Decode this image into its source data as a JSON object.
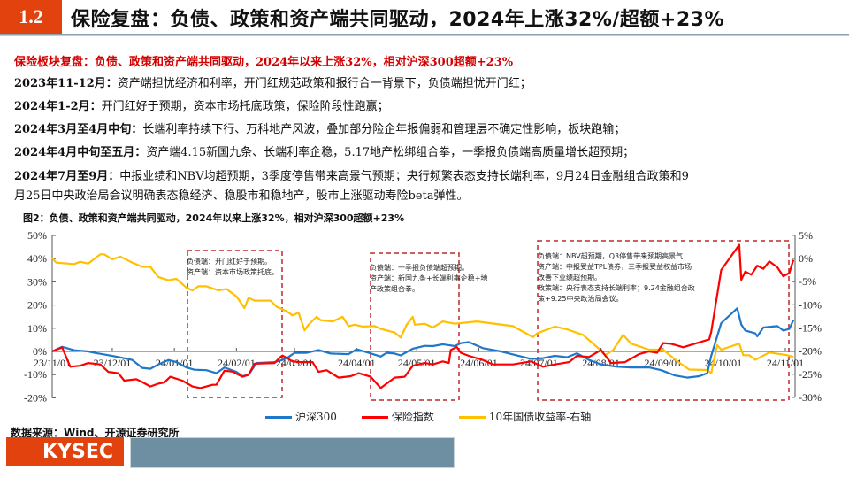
{
  "header": {
    "section_number": "1.2",
    "title": "保险复盘：负债、政策和资产端共同驱动，2024年上涨32%/超额+23%"
  },
  "subheading": "保险板块复盘：负债、政策和资产端共同驱动，2024年以来上涨32%，相对沪深300超额+23%",
  "paragraphs": [
    {
      "label": "2023年11-12月：",
      "text": "资产端担忧经济和利率，开门红规范政策和报行合一背景下，负债端担忧开门红；"
    },
    {
      "label": "2024年1-2月：",
      "text": "开门红好于预期，资本市场托底政策，保险阶段性跑赢；"
    },
    {
      "label": "2024年3月至4月中旬：",
      "text": "长端利率持续下行、万科地产风波，叠加部分险企年报偏弱和管理层不确定性影响，板块跑输；"
    },
    {
      "label": "2024年4月中旬至五月：",
      "text": "资产端4.15新国九条、长端利率企稳，5.17地产松绑组合拳，一季报负债端高质量增长超预期；"
    },
    {
      "label": "2024年7月至9月：",
      "text": "中报业绩和NBV均超预期，3季度停售带来高景气预期；央行频繁表态支持长端利率，9月24日金融组合政策和9",
      "text2": "月25日中央政治局会议明确表态稳经济、稳股市和稳地产，股市上涨驱动寿险beta弹性。"
    }
  ],
  "figure_title": "图2：负债、政策和资产端共同驱动，2024年以来上涨32%，相对沪深300超额+23%",
  "annotations": [
    {
      "lines": [
        "负债端：开门红好于预期。",
        "资产端：资本市场政策托底。"
      ]
    },
    {
      "lines": [
        "负债端：一季报负债端超预期。",
        "资产端：新国九条+长端利率企稳+地",
        "产政策组合拳。"
      ]
    },
    {
      "lines": [
        "负债端：NBV超预期，Q3停售带来预期高景气",
        "资产端：中报受益TPL债券，三季报受益权益市场",
        "改善下业绩超预期。",
        "政策端：央行表态支持长端利率；9.24金融组合政",
        "策+9.25中央政治局会议。"
      ]
    }
  ],
  "source": "数据来源：Wind、开源证券研究所",
  "logo_text": "KYSEC",
  "colors": {
    "accent": "#e2430e",
    "hs300": "#1f77c9",
    "insurance": "#ff0000",
    "bond": "#ffc000",
    "annotation_box": "#c0282d"
  },
  "chart_data": {
    "type": "line",
    "x_unit": "days since 23/11/01",
    "x_ticks": [
      {
        "day": 0,
        "label": "23/11/01"
      },
      {
        "day": 30,
        "label": "23/12/01"
      },
      {
        "day": 61,
        "label": "24/01/01"
      },
      {
        "day": 92,
        "label": "24/02/01"
      },
      {
        "day": 121,
        "label": "24/03/01"
      },
      {
        "day": 152,
        "label": "24/04/01"
      },
      {
        "day": 182,
        "label": "24/05/01"
      },
      {
        "day": 213,
        "label": "24/06/01"
      },
      {
        "day": 243,
        "label": "24/07/01"
      },
      {
        "day": 274,
        "label": "24/08/01"
      },
      {
        "day": 305,
        "label": "24/09/01"
      },
      {
        "day": 335,
        "label": "24/10/01"
      },
      {
        "day": 366,
        "label": "24/11/01"
      }
    ],
    "y_left": {
      "ylim": [
        -20,
        50
      ],
      "ticks": [
        "50%",
        "40%",
        "30%",
        "20%",
        "10%",
        "0%",
        "-10%",
        "-20%"
      ],
      "values": [
        50,
        40,
        30,
        20,
        10,
        0,
        -10,
        -20
      ]
    },
    "y_right": {
      "ylim": [
        -30,
        5
      ],
      "ticks": [
        "5%",
        "0%",
        "-5%",
        "-10%",
        "-15%",
        "-20%",
        "-25%",
        "-30%"
      ],
      "values": [
        5,
        0,
        -5,
        -10,
        -15,
        -20,
        -25,
        -30
      ]
    },
    "series": [
      {
        "name": "沪深300",
        "axis": "left",
        "color": "#1f77c9",
        "points": [
          [
            0,
            0
          ],
          [
            5,
            2.0
          ],
          [
            11,
            0.5
          ],
          [
            18,
            0
          ],
          [
            21,
            -0.6
          ],
          [
            25,
            -1.2
          ],
          [
            33,
            -2.4
          ],
          [
            40,
            -3.7
          ],
          [
            45,
            -7.1
          ],
          [
            49,
            -7.5
          ],
          [
            53,
            -5.6
          ],
          [
            58,
            -3.7
          ],
          [
            62,
            -4.6
          ],
          [
            67,
            -6.9
          ],
          [
            71,
            -7.9
          ],
          [
            77,
            -8.1
          ],
          [
            82,
            -9.4
          ],
          [
            86,
            -6.9
          ],
          [
            92,
            -8.8
          ],
          [
            95,
            -10.7
          ],
          [
            98,
            -10.1
          ],
          [
            102,
            -5.0
          ],
          [
            111,
            -4.6
          ],
          [
            115,
            -3.7
          ],
          [
            118,
            -2.4
          ],
          [
            121,
            -0.6
          ],
          [
            127,
            -0.6
          ],
          [
            133,
            0.6
          ],
          [
            139,
            -0.9
          ],
          [
            148,
            -1.2
          ],
          [
            152,
            0.9
          ],
          [
            158,
            -0.6
          ],
          [
            164,
            -2.2
          ],
          [
            167,
            -0.6
          ],
          [
            171,
            -0.9
          ],
          [
            174,
            -1.7
          ],
          [
            180,
            1.2
          ],
          [
            186,
            2.4
          ],
          [
            190,
            2.3
          ],
          [
            195,
            3.1
          ],
          [
            201,
            2.3
          ],
          [
            204,
            3.6
          ],
          [
            208,
            4.0
          ],
          [
            215,
            1.4
          ],
          [
            224,
            0
          ],
          [
            230,
            -1.3
          ],
          [
            239,
            -3.2
          ],
          [
            245,
            -2.9
          ],
          [
            251,
            -1.9
          ],
          [
            257,
            -2.5
          ],
          [
            262,
            -0.8
          ],
          [
            268,
            -3.7
          ],
          [
            274,
            -5.6
          ],
          [
            282,
            -6.6
          ],
          [
            289,
            -6.9
          ],
          [
            298,
            -6.9
          ],
          [
            304,
            -8.1
          ],
          [
            311,
            -10.4
          ],
          [
            317,
            -11.3
          ],
          [
            323,
            -10.7
          ],
          [
            327,
            -9.4
          ],
          [
            329,
            -1.9
          ],
          [
            334,
            12.2
          ],
          [
            342,
            18.6
          ],
          [
            344,
            11.6
          ],
          [
            346,
            9.0
          ],
          [
            351,
            7.8
          ],
          [
            352,
            6.5
          ],
          [
            355,
            10.3
          ],
          [
            362,
            10.9
          ],
          [
            365,
            9.0
          ],
          [
            368,
            9.7
          ],
          [
            370,
            13.5
          ]
        ]
      },
      {
        "name": "保险指数",
        "axis": "left",
        "color": "#ff0000",
        "points": [
          [
            0,
            0
          ],
          [
            5,
            1.7
          ],
          [
            9,
            -6.6
          ],
          [
            14,
            -6.2
          ],
          [
            18,
            -5.0
          ],
          [
            24,
            -5.6
          ],
          [
            28,
            -8.8
          ],
          [
            33,
            -9.4
          ],
          [
            36,
            -12.6
          ],
          [
            42,
            -12.0
          ],
          [
            45,
            -13.2
          ],
          [
            49,
            -15.1
          ],
          [
            53,
            -13.9
          ],
          [
            56,
            -13.4
          ],
          [
            59,
            -10.9
          ],
          [
            65,
            -12.6
          ],
          [
            70,
            -15.1
          ],
          [
            74,
            -15.8
          ],
          [
            77,
            -15.1
          ],
          [
            80,
            -14.4
          ],
          [
            82,
            -14.4
          ],
          [
            86,
            -8.3
          ],
          [
            90,
            -8.7
          ],
          [
            95,
            -10.9
          ],
          [
            98,
            -10.1
          ],
          [
            101,
            -5.3
          ],
          [
            111,
            -5.0
          ],
          [
            114,
            -2.4
          ],
          [
            115,
            -1.8
          ],
          [
            120,
            -4.3
          ],
          [
            124,
            -4.6
          ],
          [
            130,
            -4.6
          ],
          [
            133,
            -8.8
          ],
          [
            137,
            -8.1
          ],
          [
            143,
            -11.3
          ],
          [
            149,
            -10.7
          ],
          [
            153,
            -9.4
          ],
          [
            159,
            -10.9
          ],
          [
            164,
            -15.8
          ],
          [
            168,
            -13.2
          ],
          [
            171,
            -11.3
          ],
          [
            176,
            -10.9
          ],
          [
            180,
            -6.2
          ],
          [
            186,
            -5.0
          ],
          [
            190,
            -5.6
          ],
          [
            195,
            -4.3
          ],
          [
            198,
            -5.0
          ],
          [
            199,
            0.6
          ],
          [
            202,
            1.9
          ],
          [
            204,
            -0.6
          ],
          [
            208,
            -1.9
          ],
          [
            215,
            -3.7
          ],
          [
            220,
            -5.6
          ],
          [
            230,
            -5.6
          ],
          [
            239,
            -4.3
          ],
          [
            245,
            -6.6
          ],
          [
            251,
            -5.6
          ],
          [
            258,
            -4.6
          ],
          [
            262,
            -1.9
          ],
          [
            268,
            -2.4
          ],
          [
            274,
            0.6
          ],
          [
            279,
            -5.0
          ],
          [
            286,
            -4.6
          ],
          [
            293,
            -1.2
          ],
          [
            298,
            0
          ],
          [
            302,
            -0.6
          ],
          [
            305,
            3.6
          ],
          [
            309,
            3.3
          ],
          [
            315,
            1.8
          ],
          [
            323,
            3.9
          ],
          [
            328,
            5.2
          ],
          [
            329,
            8.4
          ],
          [
            334,
            35.1
          ],
          [
            343,
            46.0
          ],
          [
            344,
            30.9
          ],
          [
            346,
            34.4
          ],
          [
            349,
            33.1
          ],
          [
            352,
            37.0
          ],
          [
            355,
            35.6
          ],
          [
            358,
            38.8
          ],
          [
            362,
            36.3
          ],
          [
            365,
            32.4
          ],
          [
            368,
            33.8
          ],
          [
            370,
            39.5
          ]
        ]
      },
      {
        "name": "10年国债收益率-右轴",
        "axis": "right",
        "color": "#ffc000",
        "points": [
          [
            0,
            0.1
          ],
          [
            2,
            -0.9
          ],
          [
            11,
            -1.2
          ],
          [
            14,
            -0.7
          ],
          [
            18,
            -1.1
          ],
          [
            24,
            0.9
          ],
          [
            26,
            0.9
          ],
          [
            30,
            -0.2
          ],
          [
            34,
            0.4
          ],
          [
            40,
            -0.9
          ],
          [
            45,
            -1.8
          ],
          [
            49,
            -1.8
          ],
          [
            53,
            -4.0
          ],
          [
            58,
            -4.7
          ],
          [
            62,
            -4.4
          ],
          [
            67,
            -6.3
          ],
          [
            70,
            -6.9
          ],
          [
            73,
            -6.0
          ],
          [
            77,
            -6.0
          ],
          [
            83,
            -6.9
          ],
          [
            87,
            -6.6
          ],
          [
            92,
            -8.2
          ],
          [
            96,
            -10.7
          ],
          [
            98,
            -8.5
          ],
          [
            101,
            -9.1
          ],
          [
            109,
            -9.1
          ],
          [
            112,
            -10.4
          ],
          [
            117,
            -11.4
          ],
          [
            120,
            -12.3
          ],
          [
            123,
            -11.7
          ],
          [
            126,
            -15.5
          ],
          [
            128,
            -14.3
          ],
          [
            132,
            -12.6
          ],
          [
            134,
            -13.3
          ],
          [
            140,
            -13.6
          ],
          [
            145,
            -12.6
          ],
          [
            148,
            -14.6
          ],
          [
            151,
            -14.3
          ],
          [
            155,
            -14.7
          ],
          [
            161,
            -14.6
          ],
          [
            164,
            -15.2
          ],
          [
            171,
            -16.0
          ],
          [
            174,
            -17.1
          ],
          [
            177,
            -14.3
          ],
          [
            180,
            -12.6
          ],
          [
            181,
            -14.3
          ],
          [
            186,
            -14.1
          ],
          [
            190,
            -14.9
          ],
          [
            195,
            -13.6
          ],
          [
            201,
            -14.1
          ],
          [
            212,
            -13.6
          ],
          [
            230,
            -14.6
          ],
          [
            240,
            -17.0
          ],
          [
            242,
            -16.2
          ],
          [
            251,
            -14.7
          ],
          [
            257,
            -15.3
          ],
          [
            265,
            -16.5
          ],
          [
            273,
            -19.5
          ],
          [
            276,
            -20.9
          ],
          [
            280,
            -19.8
          ],
          [
            285,
            -16.5
          ],
          [
            289,
            -18.4
          ],
          [
            298,
            -19.7
          ],
          [
            305,
            -19.7
          ],
          [
            312,
            -22.2
          ],
          [
            318,
            -24.0
          ],
          [
            327,
            -24.1
          ],
          [
            329,
            -24.8
          ],
          [
            332,
            -18.7
          ],
          [
            334,
            -19.7
          ],
          [
            343,
            -18.4
          ],
          [
            345,
            -20.9
          ],
          [
            348,
            -20.9
          ],
          [
            351,
            -21.9
          ],
          [
            358,
            -20.3
          ],
          [
            367,
            -20.9
          ],
          [
            370,
            -21.3
          ]
        ]
      }
    ],
    "legend": [
      "沪深300",
      "保险指数",
      "10年国债收益率-右轴"
    ],
    "legend_position": "bottom"
  }
}
